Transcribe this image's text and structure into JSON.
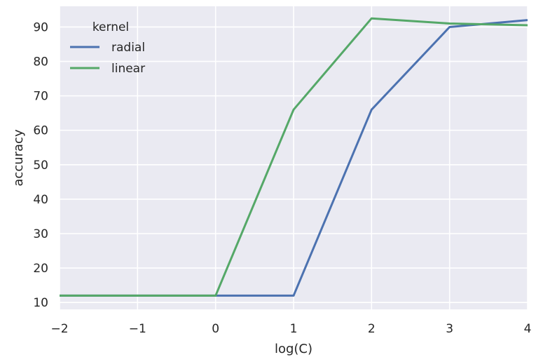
{
  "chart_data": {
    "type": "line",
    "title": "",
    "xlabel": "log(C)",
    "ylabel": "accuracy",
    "xlim": [
      -2,
      4
    ],
    "ylim": [
      8,
      96
    ],
    "xticks": [
      -2,
      -1,
      0,
      1,
      2,
      3,
      4
    ],
    "xtick_labels": [
      "−2",
      "−1",
      "0",
      "1",
      "2",
      "3",
      "4"
    ],
    "yticks": [
      10,
      20,
      30,
      40,
      50,
      60,
      70,
      80,
      90
    ],
    "ytick_labels": [
      "10",
      "20",
      "30",
      "40",
      "50",
      "60",
      "70",
      "80",
      "90"
    ],
    "grid": true,
    "style": "seaborn-darkgrid",
    "background_color": "#eaeaf2",
    "grid_color": "#ffffff",
    "legend": {
      "title": "kernel",
      "placement": "upper-left"
    },
    "series": [
      {
        "name": "radial",
        "color": "#4c72b0",
        "x": [
          -2,
          -1,
          0,
          1,
          2,
          3,
          4
        ],
        "y": [
          12,
          12,
          12,
          12,
          66,
          90,
          92
        ]
      },
      {
        "name": "linear",
        "color": "#55a868",
        "x": [
          -2,
          -1,
          0,
          1,
          2,
          3,
          4
        ],
        "y": [
          12,
          12,
          12,
          66,
          92.5,
          91,
          90.5
        ]
      }
    ]
  }
}
